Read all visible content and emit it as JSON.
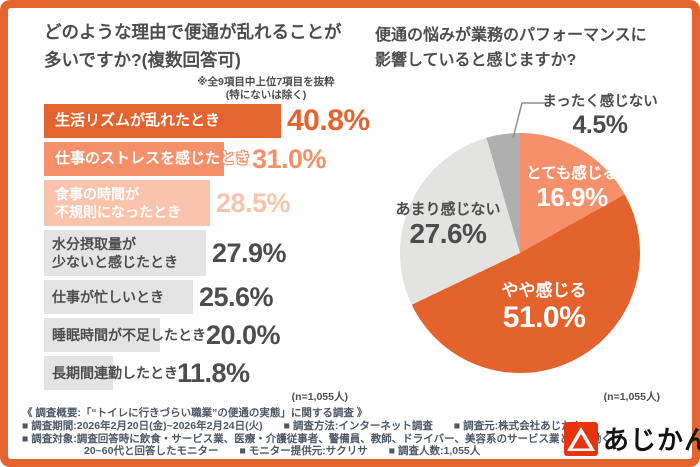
{
  "chart_data": [
    {
      "type": "bar",
      "title": "どのような理由で便通が乱れることが多いですか?(複数回答可)",
      "note": "※全9項目中上位7項目を抜粋(特にないは除く)",
      "categories": [
        "生活リズムが乱れたとき",
        "仕事のストレスを感じたとき",
        "食事の時間が不規則になったとき",
        "水分摂取量が少ないと感じたとき",
        "仕事が忙しいとき",
        "睡眠時間が不足したとき",
        "長期間連勤したとき"
      ],
      "values": [
        40.8,
        31.0,
        28.5,
        27.9,
        25.6,
        20.0,
        11.8
      ],
      "unit": "%",
      "xlim": [
        0,
        40.8
      ],
      "n_label": "(n=1,055人)",
      "bar_colors": [
        "#e5632e",
        "#f5906b",
        "#f9c4ab",
        "#e4e4e4",
        "#e4e4e4",
        "#e4e4e4",
        "#e4e4e4"
      ]
    },
    {
      "type": "pie",
      "title": "便通の悩みが業務のパフォーマンスに影響していると感じますか?",
      "categories": [
        "とても感じる",
        "やや感じる",
        "あまり感じない",
        "まったく感じない"
      ],
      "values": [
        16.9,
        51.0,
        27.6,
        4.5
      ],
      "unit": "%",
      "start_angle_deg": 0,
      "direction": "clockwise",
      "n_label": "(n=1,055人)",
      "slice_colors": [
        "#f5906b",
        "#e4632d",
        "#e3e3e2",
        "#afafaf"
      ]
    }
  ],
  "left": {
    "title_line1": "どのような理由で便通が乱れることが",
    "title_line2": "多いですか?(複数回答可)",
    "note_line1": "※全9項目中上位7項目を抜粋",
    "note_line2": "(特にないは除く)",
    "n_label": "(n=1,055人)",
    "rows": [
      {
        "line1": "生活リズムが乱れたとき",
        "line2": "",
        "pct": "40.8%",
        "value": 40.8
      },
      {
        "line1": "仕事のストレスを感じたとき",
        "line2": "",
        "pct": "31.0%",
        "value": 31.0
      },
      {
        "line1": "食事の時間が",
        "line2": "不規則になったとき",
        "pct": "28.5%",
        "value": 28.5
      },
      {
        "line1": "水分摂取量が",
        "line2": "少ないと感じたとき",
        "pct": "27.9%",
        "value": 27.9
      },
      {
        "line1": "仕事が忙しいとき",
        "line2": "",
        "pct": "25.6%",
        "value": 25.6
      },
      {
        "line1": "睡眠時間が不足したとき",
        "line2": "",
        "pct": "20.0%",
        "value": 20.0
      },
      {
        "line1": "長期間連勤したとき",
        "line2": "",
        "pct": "11.8%",
        "value": 11.8
      }
    ]
  },
  "right": {
    "title_line1": "便通の悩みが業務のパフォーマンスに",
    "title_line2": "影響していると感じますか?",
    "n_label": "(n=1,055人)",
    "slices": [
      {
        "name": "とても感じる",
        "pct": "16.9%",
        "value": 16.9,
        "color": "#f5906b"
      },
      {
        "name": "やや感じる",
        "pct": "51.0%",
        "value": 51.0,
        "color": "#e4632d"
      },
      {
        "name": "あまり感じない",
        "pct": "27.6%",
        "value": 27.6,
        "color": "#e3e3e2"
      },
      {
        "name": "まったく感じない",
        "pct": "4.5%",
        "value": 4.5,
        "color": "#afafaf"
      }
    ]
  },
  "footer": {
    "line1": "《 調査概要:「“トイレに行きづらい職業”の便通の実態」に関する調査 》",
    "line2": "■ 調査期間:2026年2月20日(金)~2026年2月24日(火)　　■ 調査方法:インターネット調査　　■ 調査元:株式会社あじかん",
    "line3": "■ 調査対象:調査回答時に飲食・サービス業、医療・介護従事者、警備員、教師、ドライバー、美容系のサービス業として働く",
    "line4": "20~60代と回答したモニター　　■ モニター提供元:サクリサ　　■ 調査人数:1,055人",
    "logo_text": "あじかん"
  },
  "colors": {
    "frame": "#e5632e",
    "accent_dark_orange": "#e5632e",
    "accent_salmon": "#f5906b",
    "accent_peach": "#f9c4ab",
    "bar_gray": "#e4e4e4",
    "pie_light_gray": "#e3e3e2",
    "pie_dark_gray": "#afafaf",
    "text_dark": "#4d4d4d",
    "footer_text": "#4d5866",
    "logo_red": "#e8340c"
  }
}
